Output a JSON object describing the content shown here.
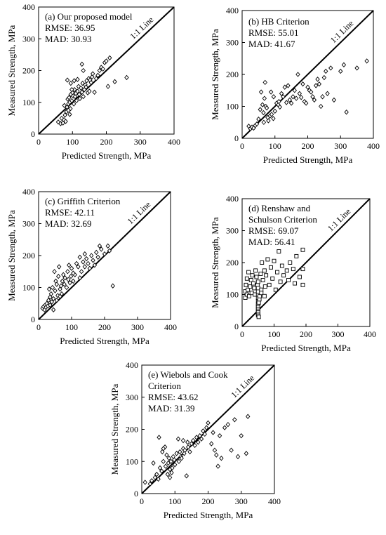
{
  "figure": {
    "xlabel": "Predicted Strength, MPa",
    "ylabel": "Measured Strength, MPa",
    "line_label": "1:1 Line"
  },
  "chart_data": [
    {
      "type": "scatter",
      "panel": "(a)",
      "annotation": [
        "(a) Our proposed model",
        "RMSE: 36.95",
        "MAD: 30.93"
      ],
      "xlabel": "Predicted Strength, MPa",
      "ylabel": "Measured Strength, MPa",
      "xlim": [
        0,
        400
      ],
      "ylim": [
        0,
        400
      ],
      "xticks": [
        0,
        100,
        200,
        300,
        400
      ],
      "yticks": [
        0,
        100,
        200,
        300,
        400
      ],
      "marker": "diamond",
      "reference_line": "1:1 Line",
      "points": [
        [
          58,
          38
        ],
        [
          65,
          33
        ],
        [
          68,
          50
        ],
        [
          72,
          35
        ],
        [
          75,
          45
        ],
        [
          78,
          60
        ],
        [
          80,
          40
        ],
        [
          82,
          70
        ],
        [
          84,
          85
        ],
        [
          86,
          110
        ],
        [
          88,
          95
        ],
        [
          90,
          115
        ],
        [
          92,
          100
        ],
        [
          94,
          80
        ],
        [
          95,
          125
        ],
        [
          98,
          105
        ],
        [
          100,
          130
        ],
        [
          102,
          120
        ],
        [
          104,
          95
        ],
        [
          106,
          140
        ],
        [
          108,
          118
        ],
        [
          110,
          128
        ],
        [
          112,
          105
        ],
        [
          115,
          135
        ],
        [
          118,
          150
        ],
        [
          120,
          125
        ],
        [
          122,
          112
        ],
        [
          125,
          145
        ],
        [
          128,
          132
        ],
        [
          130,
          160
        ],
        [
          132,
          118
        ],
        [
          135,
          140
        ],
        [
          138,
          155
        ],
        [
          140,
          148
        ],
        [
          142,
          168
        ],
        [
          145,
          130
        ],
        [
          148,
          175
        ],
        [
          150,
          135
        ],
        [
          152,
          170
        ],
        [
          155,
          162
        ],
        [
          158,
          180
        ],
        [
          160,
          190
        ],
        [
          165,
          132
        ],
        [
          170,
          175
        ],
        [
          175,
          185
        ],
        [
          180,
          200
        ],
        [
          185,
          210
        ],
        [
          190,
          205
        ],
        [
          195,
          225
        ],
        [
          200,
          230
        ],
        [
          205,
          150
        ],
        [
          210,
          240
        ],
        [
          225,
          165
        ],
        [
          260,
          178
        ],
        [
          85,
          170
        ],
        [
          95,
          160
        ],
        [
          105,
          168
        ],
        [
          115,
          172
        ],
        [
          128,
          220
        ],
        [
          132,
          200
        ],
        [
          98,
          140
        ],
        [
          88,
          75
        ],
        [
          92,
          62
        ],
        [
          76,
          90
        ]
      ]
    },
    {
      "type": "scatter",
      "panel": "(b)",
      "annotation": [
        "(b) HB Criterion",
        "RMSE: 55.01",
        "MAD: 41.67"
      ],
      "xlabel": "Predicted Strength, MPa",
      "ylabel": "Measured Strength, MPa",
      "xlim": [
        0,
        400
      ],
      "ylim": [
        0,
        400
      ],
      "xticks": [
        0,
        100,
        200,
        300,
        400
      ],
      "yticks": [
        0,
        100,
        200,
        300,
        400
      ],
      "marker": "diamond",
      "reference_line": "1:1 Line",
      "points": [
        [
          20,
          38
        ],
        [
          25,
          30
        ],
        [
          30,
          35
        ],
        [
          35,
          32
        ],
        [
          40,
          40
        ],
        [
          45,
          45
        ],
        [
          50,
          60
        ],
        [
          55,
          90
        ],
        [
          58,
          145
        ],
        [
          62,
          105
        ],
        [
          65,
          80
        ],
        [
          68,
          125
        ],
        [
          70,
          175
        ],
        [
          72,
          100
        ],
        [
          75,
          95
        ],
        [
          80,
          55
        ],
        [
          85,
          70
        ],
        [
          90,
          75
        ],
        [
          95,
          62
        ],
        [
          100,
          85
        ],
        [
          105,
          110
        ],
        [
          110,
          105
        ],
        [
          112,
          115
        ],
        [
          115,
          98
        ],
        [
          120,
          140
        ],
        [
          125,
          130
        ],
        [
          130,
          160
        ],
        [
          135,
          112
        ],
        [
          140,
          165
        ],
        [
          145,
          120
        ],
        [
          150,
          110
        ],
        [
          155,
          130
        ],
        [
          160,
          150
        ],
        [
          165,
          125
        ],
        [
          170,
          200
        ],
        [
          175,
          140
        ],
        [
          180,
          128
        ],
        [
          185,
          170
        ],
        [
          190,
          115
        ],
        [
          195,
          110
        ],
        [
          200,
          160
        ],
        [
          205,
          150
        ],
        [
          210,
          145
        ],
        [
          215,
          130
        ],
        [
          220,
          120
        ],
        [
          225,
          165
        ],
        [
          230,
          185
        ],
        [
          235,
          170
        ],
        [
          240,
          100
        ],
        [
          245,
          130
        ],
        [
          250,
          190
        ],
        [
          255,
          210
        ],
        [
          260,
          140
        ],
        [
          270,
          220
        ],
        [
          280,
          120
        ],
        [
          300,
          210
        ],
        [
          310,
          230
        ],
        [
          318,
          82
        ],
        [
          350,
          220
        ],
        [
          380,
          242
        ],
        [
          88,
          145
        ],
        [
          96,
          130
        ],
        [
          78,
          65
        ],
        [
          66,
          50
        ]
      ]
    },
    {
      "type": "scatter",
      "panel": "(c)",
      "annotation": [
        "(c) Griffith Criterion",
        "RMSE: 42.11",
        "MAD: 32.69"
      ],
      "xlabel": "Predicted Strength, MPa",
      "ylabel": "Measured Strength, MPa",
      "xlim": [
        0,
        400
      ],
      "ylim": [
        0,
        400
      ],
      "xticks": [
        0,
        100,
        200,
        300,
        400
      ],
      "yticks": [
        0,
        100,
        200,
        300,
        400
      ],
      "marker": "diamond",
      "reference_line": "1:1 Line",
      "points": [
        [
          12,
          35
        ],
        [
          15,
          40
        ],
        [
          18,
          30
        ],
        [
          20,
          45
        ],
        [
          22,
          38
        ],
        [
          25,
          50
        ],
        [
          28,
          42
        ],
        [
          30,
          60
        ],
        [
          32,
          95
        ],
        [
          35,
          70
        ],
        [
          38,
          80
        ],
        [
          40,
          55
        ],
        [
          42,
          100
        ],
        [
          45,
          65
        ],
        [
          48,
          150
        ],
        [
          50,
          90
        ],
        [
          52,
          120
        ],
        [
          55,
          110
        ],
        [
          58,
          75
        ],
        [
          60,
          135
        ],
        [
          62,
          165
        ],
        [
          65,
          95
        ],
        [
          68,
          105
        ],
        [
          70,
          80
        ],
        [
          72,
          120
        ],
        [
          75,
          140
        ],
        [
          78,
          110
        ],
        [
          80,
          130
        ],
        [
          85,
          100
        ],
        [
          88,
          150
        ],
        [
          90,
          125
        ],
        [
          92,
          170
        ],
        [
          95,
          115
        ],
        [
          98,
          135
        ],
        [
          100,
          160
        ],
        [
          105,
          120
        ],
        [
          110,
          140
        ],
        [
          115,
          175
        ],
        [
          120,
          165
        ],
        [
          125,
          130
        ],
        [
          130,
          150
        ],
        [
          135,
          180
        ],
        [
          140,
          165
        ],
        [
          145,
          190
        ],
        [
          150,
          175
        ],
        [
          155,
          160
        ],
        [
          160,
          200
        ],
        [
          165,
          185
        ],
        [
          170,
          170
        ],
        [
          175,
          210
        ],
        [
          180,
          195
        ],
        [
          185,
          230
        ],
        [
          190,
          220
        ],
        [
          200,
          205
        ],
        [
          210,
          230
        ],
        [
          215,
          215
        ],
        [
          225,
          105
        ],
        [
          45,
          30
        ],
        [
          35,
          45
        ],
        [
          55,
          60
        ],
        [
          65,
          72
        ],
        [
          105,
          145
        ],
        [
          125,
          195
        ],
        [
          140,
          205
        ]
      ]
    },
    {
      "type": "scatter",
      "panel": "(d)",
      "annotation": [
        "(d) Renshaw and",
        "Schulson Criterion",
        "RMSE: 69.07",
        "MAD: 56.41"
      ],
      "xlabel": "Predicted Strength, MPa",
      "ylabel": "Measured Strength, MPa",
      "xlim": [
        0,
        400
      ],
      "ylim": [
        0,
        400
      ],
      "xticks": [
        0,
        100,
        200,
        300,
        400
      ],
      "yticks": [
        0,
        100,
        200,
        300,
        400
      ],
      "marker": "square",
      "reference_line": "1:1 Line",
      "points": [
        [
          10,
          90
        ],
        [
          10,
          110
        ],
        [
          12,
          130
        ],
        [
          15,
          100
        ],
        [
          15,
          150
        ],
        [
          18,
          115
        ],
        [
          20,
          170
        ],
        [
          22,
          95
        ],
        [
          25,
          125
        ],
        [
          28,
          145
        ],
        [
          30,
          105
        ],
        [
          32,
          160
        ],
        [
          35,
          135
        ],
        [
          38,
          120
        ],
        [
          40,
          100
        ],
        [
          42,
          175
        ],
        [
          45,
          155
        ],
        [
          48,
          130
        ],
        [
          50,
          35
        ],
        [
          50,
          40
        ],
        [
          50,
          45
        ],
        [
          50,
          50
        ],
        [
          50,
          55
        ],
        [
          50,
          60
        ],
        [
          50,
          65
        ],
        [
          50,
          70
        ],
        [
          50,
          80
        ],
        [
          50,
          90
        ],
        [
          50,
          100
        ],
        [
          50,
          110
        ],
        [
          50,
          120
        ],
        [
          50,
          140
        ],
        [
          52,
          30
        ],
        [
          52,
          75
        ],
        [
          54,
          85
        ],
        [
          55,
          95
        ],
        [
          58,
          165
        ],
        [
          60,
          115
        ],
        [
          62,
          200
        ],
        [
          65,
          145
        ],
        [
          70,
          175
        ],
        [
          72,
          125
        ],
        [
          75,
          160
        ],
        [
          80,
          210
        ],
        [
          85,
          130
        ],
        [
          90,
          185
        ],
        [
          95,
          150
        ],
        [
          100,
          205
        ],
        [
          105,
          115
        ],
        [
          110,
          170
        ],
        [
          115,
          235
        ],
        [
          120,
          140
        ],
        [
          125,
          190
        ],
        [
          130,
          160
        ],
        [
          140,
          175
        ],
        [
          145,
          145
        ],
        [
          150,
          200
        ],
        [
          160,
          180
        ],
        [
          165,
          135
        ],
        [
          170,
          220
        ],
        [
          180,
          155
        ],
        [
          190,
          130
        ],
        [
          190,
          240
        ],
        [
          190,
          180
        ],
        [
          60,
          105
        ],
        [
          70,
          95
        ]
      ]
    },
    {
      "type": "scatter",
      "panel": "(e)",
      "annotation": [
        "(e) Wiebols and Cook",
        "Criterion",
        "RMSE: 43.62",
        "MAD: 31.39"
      ],
      "xlabel": "Predicted Strength, MPa",
      "ylabel": "Measured Strength, MPa",
      "xlim": [
        0,
        400
      ],
      "ylim": [
        0,
        400
      ],
      "xticks": [
        0,
        100,
        200,
        300,
        400
      ],
      "yticks": [
        0,
        100,
        200,
        300,
        400
      ],
      "marker": "diamond",
      "reference_line": "1:1 Line",
      "points": [
        [
          10,
          35
        ],
        [
          25,
          30
        ],
        [
          30,
          40
        ],
        [
          35,
          95
        ],
        [
          40,
          50
        ],
        [
          45,
          60
        ],
        [
          50,
          45
        ],
        [
          52,
          175
        ],
        [
          55,
          80
        ],
        [
          60,
          70
        ],
        [
          62,
          130
        ],
        [
          65,
          100
        ],
        [
          70,
          145
        ],
        [
          72,
          85
        ],
        [
          75,
          120
        ],
        [
          78,
          60
        ],
        [
          80,
          95
        ],
        [
          82,
          110
        ],
        [
          85,
          75
        ],
        [
          88,
          100
        ],
        [
          90,
          65
        ],
        [
          92,
          80
        ],
        [
          95,
          115
        ],
        [
          98,
          105
        ],
        [
          100,
          90
        ],
        [
          105,
          125
        ],
        [
          110,
          170
        ],
        [
          112,
          100
        ],
        [
          115,
          130
        ],
        [
          118,
          115
        ],
        [
          120,
          110
        ],
        [
          125,
          140
        ],
        [
          128,
          125
        ],
        [
          130,
          135
        ],
        [
          135,
          55
        ],
        [
          138,
          160
        ],
        [
          140,
          145
        ],
        [
          145,
          130
        ],
        [
          150,
          155
        ],
        [
          155,
          165
        ],
        [
          160,
          150
        ],
        [
          165,
          175
        ],
        [
          170,
          160
        ],
        [
          175,
          180
        ],
        [
          180,
          170
        ],
        [
          185,
          195
        ],
        [
          190,
          185
        ],
        [
          195,
          205
        ],
        [
          200,
          220
        ],
        [
          210,
          155
        ],
        [
          215,
          190
        ],
        [
          220,
          135
        ],
        [
          225,
          120
        ],
        [
          230,
          85
        ],
        [
          235,
          180
        ],
        [
          240,
          110
        ],
        [
          250,
          205
        ],
        [
          260,
          215
        ],
        [
          270,
          135
        ],
        [
          280,
          230
        ],
        [
          290,
          115
        ],
        [
          300,
          180
        ],
        [
          315,
          125
        ],
        [
          320,
          240
        ],
        [
          65,
          140
        ],
        [
          85,
          50
        ],
        [
          125,
          165
        ]
      ]
    }
  ]
}
